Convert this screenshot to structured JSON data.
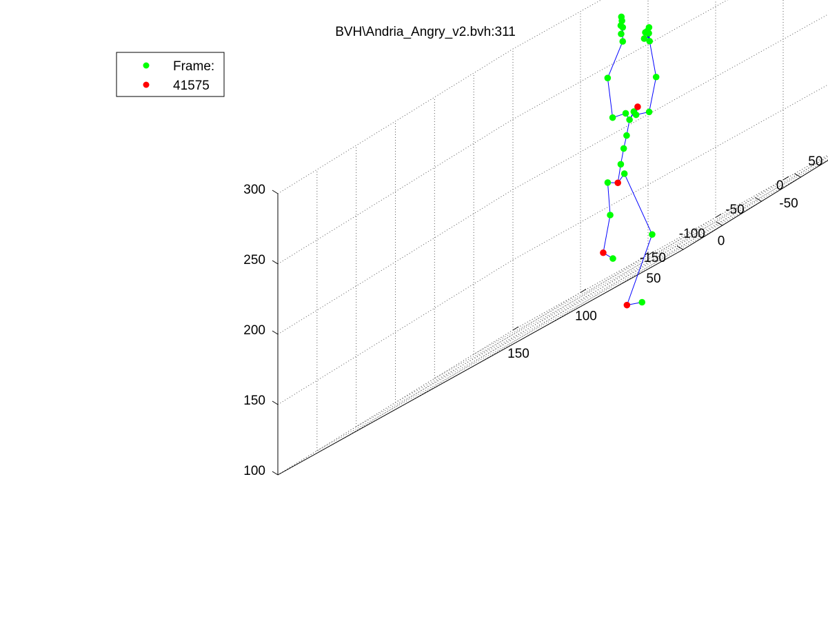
{
  "chart_data": {
    "type": "scatter",
    "title": "BVH\\Andria_Angry_v2.bvh:311",
    "legend": {
      "placement": "top-left",
      "entries": [
        {
          "label": "Frame:",
          "color": "#00ff00",
          "marker": "circle"
        },
        {
          "label": "41575",
          "color": "#ff0000",
          "marker": "circle"
        }
      ]
    },
    "grid": true,
    "x_ticks": [
      "-150",
      "-100",
      "-50",
      "0",
      "50",
      "100",
      "150"
    ],
    "y_ticks": [
      "-150",
      "-100",
      "-50",
      "0",
      "50",
      "100",
      "150"
    ],
    "z_ticks": [
      "100",
      "150",
      "200",
      "250",
      "300"
    ],
    "xlim": [
      -150,
      150
    ],
    "ylim": [
      -150,
      150
    ],
    "zlim": [
      100,
      300
    ],
    "colors": {
      "joint": "#00ff00",
      "highlight": "#ff0000",
      "bone": "#0000ff"
    },
    "joints": [
      {
        "id": "hip",
        "pos": [
          -10,
          8,
          168
        ],
        "highlight": true
      },
      {
        "id": "r_thigh",
        "pos": [
          -16,
          6,
          172
        ],
        "highlight": false
      },
      {
        "id": "r_knee",
        "pos": [
          -40,
          0,
          118
        ],
        "highlight": false
      },
      {
        "id": "r_ankle",
        "pos": [
          -26,
          -8,
          78
        ],
        "highlight": true
      },
      {
        "id": "r_toe",
        "pos": [
          -36,
          -6,
          74
        ],
        "highlight": false
      },
      {
        "id": "l_thigh",
        "pos": [
          1,
          14,
          172
        ],
        "highlight": false
      },
      {
        "id": "l_knee",
        "pos": [
          -2,
          12,
          148
        ],
        "highlight": false
      },
      {
        "id": "l_ankle",
        "pos": [
          2,
          10,
          124
        ],
        "highlight": true
      },
      {
        "id": "l_toe",
        "pos": [
          -4,
          12,
          116
        ],
        "highlight": false
      },
      {
        "id": "spine",
        "pos": [
          -11,
          10,
          180
        ],
        "highlight": false
      },
      {
        "id": "spine1",
        "pos": [
          -12,
          12,
          190
        ],
        "highlight": false
      },
      {
        "id": "spine2",
        "pos": [
          -13,
          14,
          198
        ],
        "highlight": false
      },
      {
        "id": "neck",
        "pos": [
          -14,
          16,
          208
        ],
        "highlight": false
      },
      {
        "id": "neck_top",
        "pos": [
          -16,
          18,
          212
        ],
        "highlight": false
      },
      {
        "id": "r_clavicle",
        "pos": [
          -20,
          16,
          214
        ],
        "highlight": true
      },
      {
        "id": "r_shoulder",
        "pos": [
          -20,
          14,
          209
        ],
        "highlight": false
      },
      {
        "id": "r_elbow",
        "pos": [
          -32,
          10,
          206
        ],
        "highlight": false
      },
      {
        "id": "r_wrist",
        "pos": [
          -36,
          12,
          228
        ],
        "highlight": false
      },
      {
        "id": "r_hand",
        "pos": [
          -30,
          14,
          256
        ],
        "highlight": false
      },
      {
        "id": "r_finger1",
        "pos": [
          -28,
          16,
          262
        ],
        "highlight": false
      },
      {
        "id": "r_finger2",
        "pos": [
          -27,
          16,
          264
        ],
        "highlight": false
      },
      {
        "id": "r_finger3",
        "pos": [
          -28,
          12,
          264
        ],
        "highlight": false
      },
      {
        "id": "r_finger4",
        "pos": [
          -30,
          13,
          262
        ],
        "highlight": false
      },
      {
        "id": "r_finger5",
        "pos": [
          -26,
          14,
          260
        ],
        "highlight": false
      },
      {
        "id": "r_finger6",
        "pos": [
          -29,
          15,
          266
        ],
        "highlight": false
      },
      {
        "id": "l_clavicle",
        "pos": [
          -10,
          18,
          214
        ],
        "highlight": false
      },
      {
        "id": "l_shoulder",
        "pos": [
          2,
          22,
          216
        ],
        "highlight": false
      },
      {
        "id": "l_elbow",
        "pos": [
          8,
          26,
          246
        ],
        "highlight": false
      },
      {
        "id": "l_wrist",
        "pos": [
          -2,
          28,
          266
        ],
        "highlight": false
      },
      {
        "id": "l_hand",
        "pos": [
          -2,
          28,
          276
        ],
        "highlight": false
      },
      {
        "id": "l_finger1",
        "pos": [
          -2,
          27,
          281
        ],
        "highlight": false
      },
      {
        "id": "l_finger2",
        "pos": [
          -1,
          28,
          284
        ],
        "highlight": false
      },
      {
        "id": "l_finger3",
        "pos": [
          -2,
          26,
          272
        ],
        "highlight": false
      },
      {
        "id": "l_finger4",
        "pos": [
          0,
          29,
          278
        ],
        "highlight": false
      }
    ],
    "bones": [
      [
        "hip",
        "r_thigh"
      ],
      [
        "r_thigh",
        "r_knee"
      ],
      [
        "r_knee",
        "r_ankle"
      ],
      [
        "r_ankle",
        "r_toe"
      ],
      [
        "hip",
        "l_thigh"
      ],
      [
        "l_thigh",
        "l_knee"
      ],
      [
        "l_knee",
        "l_ankle"
      ],
      [
        "l_ankle",
        "l_toe"
      ],
      [
        "hip",
        "spine"
      ],
      [
        "spine",
        "spine1"
      ],
      [
        "spine1",
        "spine2"
      ],
      [
        "spine2",
        "neck"
      ],
      [
        "neck",
        "neck_top"
      ],
      [
        "neck",
        "r_clavicle"
      ],
      [
        "r_clavicle",
        "r_shoulder"
      ],
      [
        "r_shoulder",
        "r_elbow"
      ],
      [
        "r_elbow",
        "r_wrist"
      ],
      [
        "r_wrist",
        "r_hand"
      ],
      [
        "r_hand",
        "r_finger1"
      ],
      [
        "r_hand",
        "r_finger2"
      ],
      [
        "r_hand",
        "r_finger3"
      ],
      [
        "r_hand",
        "r_finger4"
      ],
      [
        "r_hand",
        "r_finger5"
      ],
      [
        "r_hand",
        "r_finger6"
      ],
      [
        "neck",
        "l_clavicle"
      ],
      [
        "l_clavicle",
        "l_shoulder"
      ],
      [
        "l_shoulder",
        "l_elbow"
      ],
      [
        "l_elbow",
        "l_wrist"
      ],
      [
        "l_wrist",
        "l_hand"
      ],
      [
        "l_hand",
        "l_finger1"
      ],
      [
        "l_hand",
        "l_finger2"
      ],
      [
        "l_hand",
        "l_finger3"
      ],
      [
        "l_hand",
        "l_finger4"
      ]
    ]
  }
}
